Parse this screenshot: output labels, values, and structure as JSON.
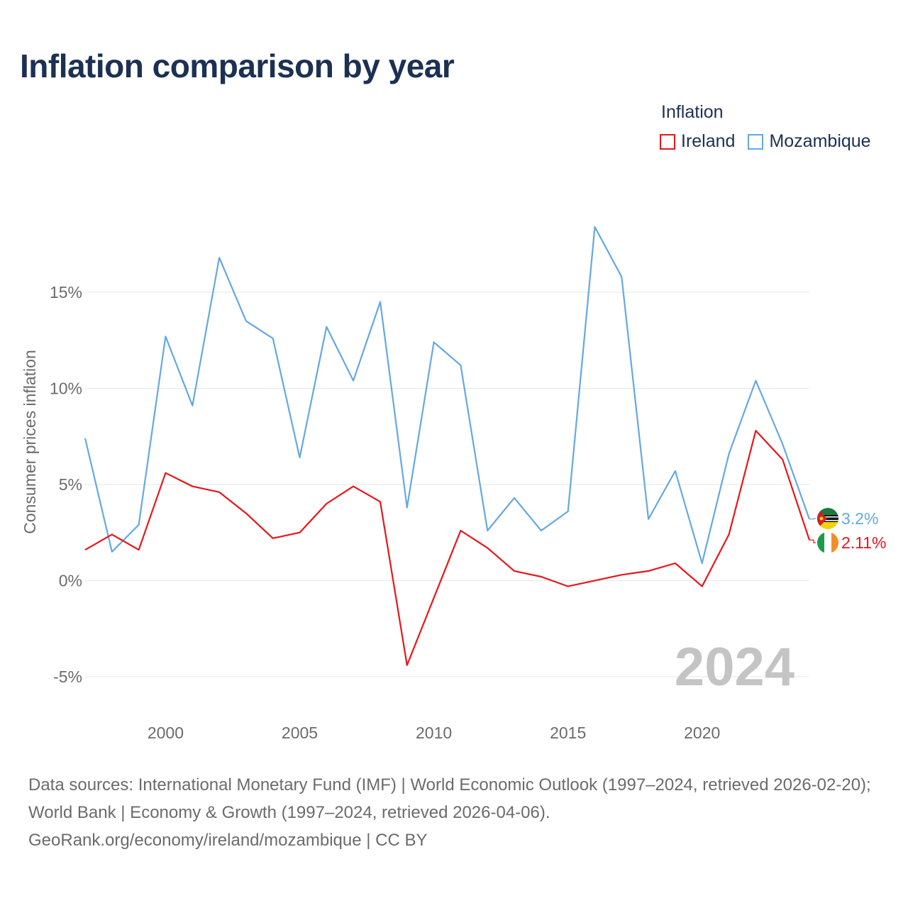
{
  "title": "Inflation comparison by year",
  "legend": {
    "title": "Inflation",
    "items": [
      {
        "name": "Ireland",
        "color": "#e8161b"
      },
      {
        "name": "Mozambique",
        "color": "#64a8e4"
      }
    ]
  },
  "footer": {
    "line1": "Data sources: International Monetary Fund (IMF) | World Economic Outlook (1997–2024, retrieved 2026-02-20); World Bank | Economy & Growth (1997–2024, retrieved 2026-04-06).",
    "line2": "GeoRank.org/economy/ireland/mozambique | CC BY"
  },
  "chart_data": {
    "type": "line",
    "title": "Inflation comparison by year",
    "xlabel": "",
    "ylabel": "Consumer prices inflation",
    "x": [
      1997,
      1998,
      1999,
      2000,
      2001,
      2002,
      2003,
      2004,
      2005,
      2006,
      2007,
      2008,
      2009,
      2010,
      2011,
      2012,
      2013,
      2014,
      2015,
      2016,
      2017,
      2018,
      2019,
      2020,
      2021,
      2022,
      2023,
      2024
    ],
    "xlim": [
      1997,
      2024
    ],
    "ylim": [
      -6.7,
      19.5
    ],
    "x_ticks": [
      2000,
      2005,
      2010,
      2015,
      2020
    ],
    "y_ticks": [
      -5,
      0,
      5,
      10,
      15
    ],
    "y_tick_labels": [
      "-5%",
      "0%",
      "5%",
      "10%",
      "15%"
    ],
    "grid": true,
    "year_watermark": "2024",
    "series": [
      {
        "name": "Mozambique",
        "color": "#64a8e4",
        "end_label": "3.2%",
        "values": [
          7.4,
          1.5,
          2.9,
          12.7,
          9.1,
          16.8,
          13.5,
          12.6,
          6.4,
          13.2,
          10.4,
          14.5,
          3.8,
          12.4,
          11.2,
          2.6,
          4.3,
          2.6,
          3.6,
          18.4,
          15.8,
          3.2,
          5.7,
          0.9,
          6.6,
          10.4,
          7.1,
          3.2
        ]
      },
      {
        "name": "Ireland",
        "color": "#e8161b",
        "end_label": "2.11%",
        "values": [
          1.6,
          2.4,
          1.6,
          5.6,
          4.9,
          4.6,
          3.5,
          2.2,
          2.5,
          4.0,
          4.9,
          4.1,
          -4.4,
          -0.9,
          2.6,
          1.7,
          0.5,
          0.2,
          -0.3,
          0.0,
          0.3,
          0.5,
          0.9,
          -0.3,
          2.4,
          7.8,
          6.3,
          2.11
        ]
      }
    ]
  }
}
